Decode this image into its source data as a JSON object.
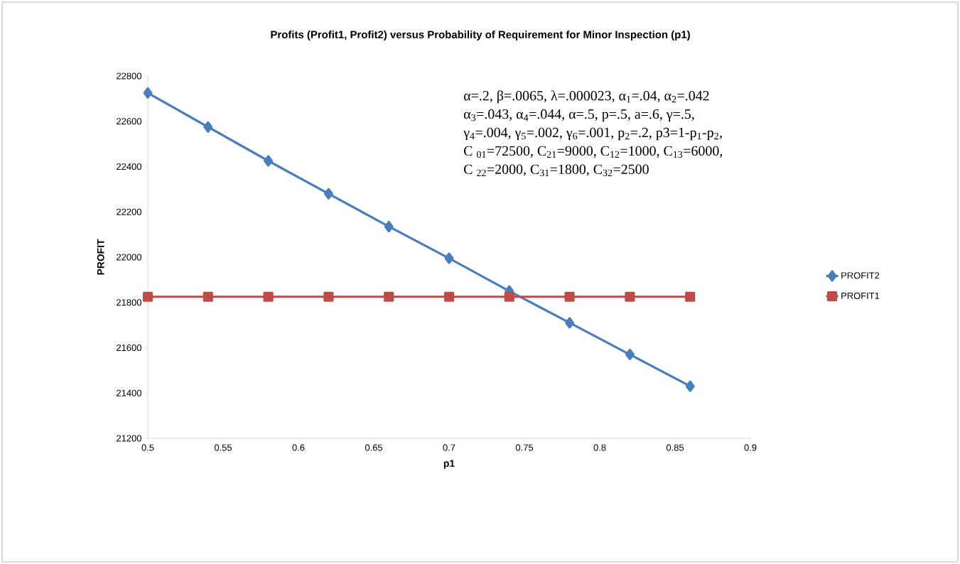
{
  "chart_data": {
    "type": "line",
    "title": "Profits (Profit1, Profit2) versus Probability of Requirement for Minor Inspection (p1)",
    "xlabel": "p1",
    "ylabel": "PROFIT",
    "x": [
      0.5,
      0.54,
      0.58,
      0.62,
      0.66,
      0.7,
      0.74,
      0.78,
      0.82,
      0.86
    ],
    "series": [
      {
        "name": "PROFIT2",
        "color": "#4a7ebb",
        "marker": "diamond",
        "values": [
          22725,
          22575,
          22425,
          22280,
          22135,
          21995,
          21850,
          21710,
          21570,
          21430
        ]
      },
      {
        "name": "PROFIT1",
        "color": "#be4b48",
        "marker": "square",
        "values": [
          21825,
          21825,
          21825,
          21825,
          21825,
          21825,
          21825,
          21825,
          21825,
          21825
        ]
      }
    ],
    "xlim": [
      0.5,
      0.9
    ],
    "xticks": [
      0.5,
      0.55,
      0.6,
      0.65,
      0.7,
      0.75,
      0.8,
      0.85,
      0.9
    ],
    "ylim": [
      21200,
      22800
    ],
    "yticks": [
      21200,
      21400,
      21600,
      21800,
      22000,
      22200,
      22400,
      22600,
      22800
    ],
    "legend": "right",
    "line_style": "solid",
    "annotations": [
      "α=.2, β=.0065, λ=.000023, α$_{1}$=.04, α$_{2}$=.042",
      "α$_{3}$=.043, α$_{4}$=.044, α=.5, p=.5, a=.6, γ=.5,",
      "γ$_{4}$=.004, γ$_{5}$=.002, γ$_{6}$=.001, p$_{2}$=.2, p3=1-p$_{1}$-p$_{2}$,",
      "C $_{01}$=72500, C$_{21}$=9000, C$_{12}$=1000, C$_{13}$=6000,",
      "C $_{22}$=2000, C$_{31}$=1800, C$_{32}$=2500"
    ]
  }
}
